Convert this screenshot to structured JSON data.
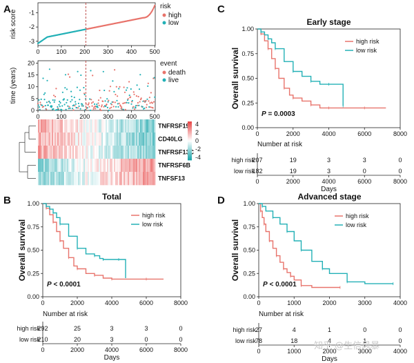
{
  "colors": {
    "high": "#E8736B",
    "low": "#22B0B6",
    "heat_high": "#E84B4B",
    "heat_mid": "#FFFFFF",
    "heat_low": "#1FA7AD"
  },
  "panel_labels": {
    "A": "A",
    "B": "B",
    "C": "C",
    "D": "D"
  },
  "watermark": "知乎 @生信风暴",
  "chart_data": [
    {
      "id": "risk_score",
      "type": "scatter",
      "ylabel": "risk score",
      "x_ticks": [
        "0",
        "100",
        "200",
        "300",
        "400",
        "500"
      ],
      "y_ticks": [
        "-1",
        "-2",
        "-3"
      ],
      "xlim": [
        0,
        502
      ],
      "ylim": [
        -3.3,
        -0.3
      ],
      "cutoff": 205,
      "legend_title": "risk",
      "legend": [
        "high",
        "low"
      ],
      "n_low": 210,
      "n_high": 292
    },
    {
      "id": "survival_time",
      "type": "scatter",
      "ylabel": "time (years)",
      "x_ticks": [
        "0",
        "100",
        "200",
        "300",
        "400",
        "500"
      ],
      "y_ticks": [
        "0",
        "5",
        "10",
        "15",
        "20"
      ],
      "xlim": [
        0,
        502
      ],
      "ylim": [
        0,
        21
      ],
      "cutoff": 205,
      "legend_title": "event",
      "legend": [
        "death",
        "live"
      ]
    },
    {
      "id": "heatmap",
      "type": "heatmap",
      "genes": [
        "TNFRSF19",
        "CD40LG",
        "TNFRSF13C",
        "TNFRSF6B",
        "TNFSF13"
      ],
      "colorbar_ticks": [
        "4",
        "2",
        "0",
        "-2",
        "-4"
      ],
      "trend": [
        -1,
        -1,
        -1,
        1,
        1
      ]
    },
    {
      "id": "km_total",
      "type": "line",
      "title": "Total",
      "xlabel": "Days",
      "ylabel": "Overall survival",
      "x_ticks": [
        "0",
        "2000",
        "4000",
        "6000",
        "8000"
      ],
      "y_ticks": [
        "0.00",
        "0.25",
        "0.50",
        "0.75",
        "1.00"
      ],
      "xlim": [
        0,
        8000
      ],
      "ylim": [
        0,
        1
      ],
      "p_label": "P",
      "p_value": "< 0.0001",
      "legend": [
        "high risk",
        "low risk"
      ],
      "series": [
        {
          "name": "high risk",
          "x": [
            0,
            200,
            400,
            600,
            800,
            1000,
            1200,
            1500,
            1800,
            2000,
            2500,
            3000,
            3500,
            4000,
            5000,
            6000,
            7000
          ],
          "y": [
            1.0,
            0.95,
            0.88,
            0.8,
            0.7,
            0.6,
            0.52,
            0.42,
            0.33,
            0.3,
            0.25,
            0.23,
            0.2,
            0.19,
            0.19,
            0.19,
            0.19
          ]
        },
        {
          "name": "low risk",
          "x": [
            0,
            200,
            400,
            600,
            800,
            1000,
            1500,
            2000,
            2500,
            3000,
            3300,
            3500,
            4000,
            4400,
            4800
          ],
          "y": [
            1.0,
            0.97,
            0.94,
            0.9,
            0.85,
            0.78,
            0.65,
            0.52,
            0.46,
            0.44,
            0.41,
            0.4,
            0.4,
            0.4,
            0.2
          ]
        }
      ],
      "risk_table": {
        "title": "Number at risk",
        "rows": [
          {
            "label": "high risk",
            "values": [
              "292",
              "25",
              "3",
              "3",
              "0"
            ]
          },
          {
            "label": "low risk",
            "values": [
              "210",
              "20",
              "3",
              "0",
              "0"
            ]
          }
        ],
        "x_ticks": [
          "0",
          "2000",
          "4000",
          "6000",
          "8000"
        ]
      }
    },
    {
      "id": "km_early",
      "type": "line",
      "title": "Early stage",
      "xlabel": "Days",
      "ylabel": "Overall survival",
      "x_ticks": [
        "0",
        "2000",
        "4000",
        "6000",
        "8000"
      ],
      "y_ticks": [
        "0.00",
        "0.25",
        "0.50",
        "0.75",
        "1.00"
      ],
      "xlim": [
        0,
        8000
      ],
      "ylim": [
        0,
        1
      ],
      "p_label": "P",
      "p_value": "= 0.0003",
      "legend": [
        "high risk",
        "low risk"
      ],
      "series": [
        {
          "name": "high risk",
          "x": [
            0,
            200,
            400,
            600,
            800,
            1000,
            1200,
            1500,
            1800,
            2000,
            2500,
            3000,
            3500,
            4000,
            5000,
            6000,
            7200
          ],
          "y": [
            1.0,
            0.95,
            0.88,
            0.8,
            0.7,
            0.6,
            0.5,
            0.4,
            0.33,
            0.3,
            0.27,
            0.23,
            0.2,
            0.2,
            0.2,
            0.2,
            0.2
          ]
        },
        {
          "name": "low risk",
          "x": [
            0,
            200,
            400,
            600,
            800,
            1000,
            1500,
            2000,
            2500,
            3000,
            3500,
            4000,
            4500,
            4800
          ],
          "y": [
            1.0,
            0.97,
            0.94,
            0.9,
            0.86,
            0.8,
            0.67,
            0.57,
            0.52,
            0.47,
            0.44,
            0.44,
            0.44,
            0.22
          ]
        }
      ],
      "risk_table": {
        "title": "Number at risk",
        "rows": [
          {
            "label": "high risk",
            "values": [
              "207",
              "19",
              "3",
              "3",
              "0"
            ]
          },
          {
            "label": "low risk",
            "values": [
              "182",
              "19",
              "3",
              "0",
              "0"
            ]
          }
        ],
        "x_ticks": [
          "0",
          "2000",
          "4000",
          "6000",
          "8000"
        ]
      }
    },
    {
      "id": "km_advanced",
      "type": "line",
      "title": "Advanced stage",
      "xlabel": "Days",
      "ylabel": "Overall survival",
      "x_ticks": [
        "0",
        "1000",
        "2000",
        "3000",
        "4000"
      ],
      "y_ticks": [
        "0.00",
        "0.25",
        "0.50",
        "0.75",
        "1.00"
      ],
      "xlim": [
        0,
        4000
      ],
      "ylim": [
        0,
        1
      ],
      "p_label": "P",
      "p_value": "< 0.0001",
      "legend": [
        "high risk",
        "low risk"
      ],
      "series": [
        {
          "name": "high risk",
          "x": [
            0,
            50,
            100,
            150,
            200,
            300,
            400,
            500,
            600,
            700,
            800,
            900,
            1000,
            1200,
            1500,
            2300
          ],
          "y": [
            1.0,
            0.92,
            0.85,
            0.78,
            0.7,
            0.6,
            0.52,
            0.44,
            0.37,
            0.3,
            0.26,
            0.22,
            0.18,
            0.12,
            0.1,
            0.1
          ]
        },
        {
          "name": "low risk",
          "x": [
            0,
            100,
            200,
            400,
            600,
            800,
            1000,
            1200,
            1500,
            1800,
            2000,
            2500,
            3000,
            3800
          ],
          "y": [
            1.0,
            0.97,
            0.92,
            0.85,
            0.78,
            0.7,
            0.6,
            0.5,
            0.38,
            0.3,
            0.25,
            0.16,
            0.14,
            0.14
          ]
        }
      ],
      "risk_table": {
        "title": "Number at risk",
        "rows": [
          {
            "label": "high risk",
            "values": [
              "27",
              "4",
              "1",
              "0",
              "0"
            ]
          },
          {
            "label": "low risk",
            "values": [
              "78",
              "18",
              "4",
              "1",
              "0"
            ]
          }
        ],
        "x_ticks": [
          "0",
          "1000",
          "2000",
          "3000",
          "4000"
        ]
      }
    }
  ]
}
